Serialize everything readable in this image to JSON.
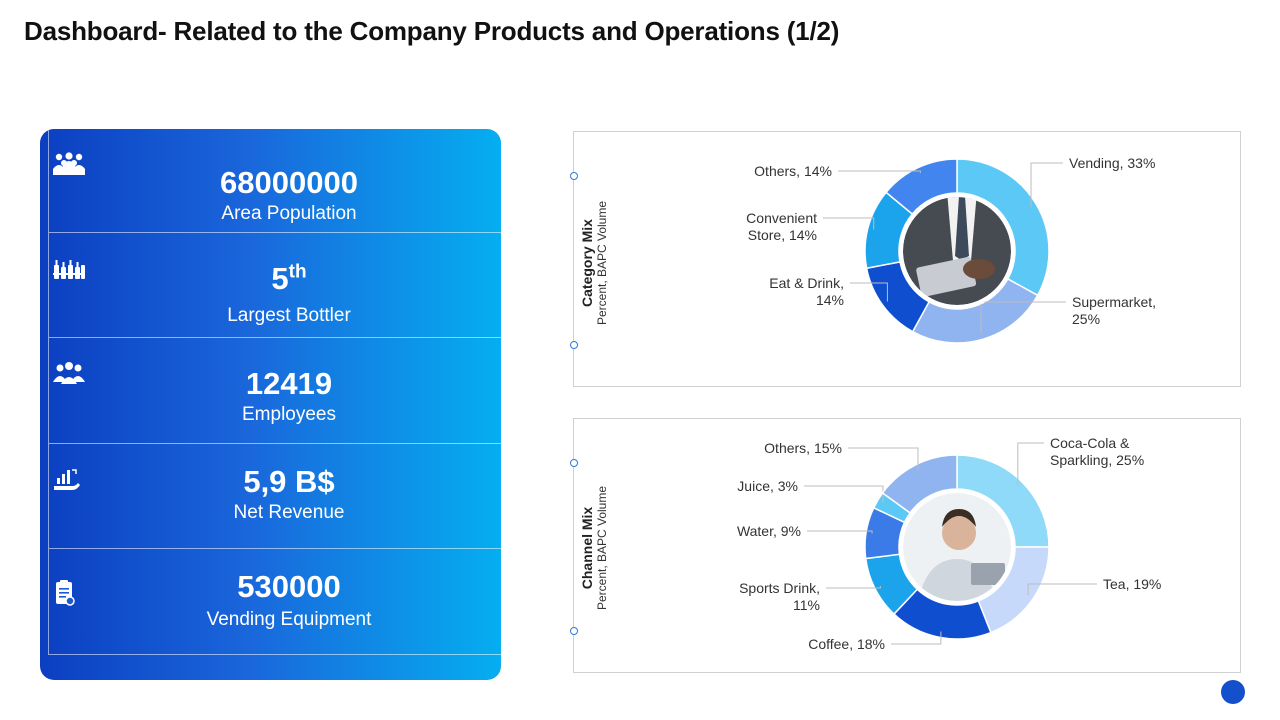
{
  "title": "Dashboard- Related to the Company Products and Operations (1/2)",
  "kpis": [
    {
      "value": "68000000",
      "sup": "",
      "label": "Area Population",
      "icon": "people-group-icon"
    },
    {
      "value": "5",
      "sup": "th",
      "label": "Largest Bottler",
      "icon": "bottles-icon"
    },
    {
      "value": "12419",
      "sup": "",
      "label": "Employees",
      "icon": "team-icon"
    },
    {
      "value": "5,9 B$",
      "sup": "",
      "label": "Net Revenue",
      "icon": "revenue-hand-icon"
    },
    {
      "value": "530000",
      "sup": "",
      "label": "Vending  Equipment",
      "icon": "clipboard-icon"
    }
  ],
  "colors": {
    "panel_start": "#0b3fc1",
    "panel_end": "#05aef0",
    "accent": "#1450cc"
  },
  "chart_data": [
    {
      "type": "pie",
      "variant": "donut",
      "title": "Category Mix",
      "subtitle": "Percent, BAPC Volume",
      "slices": [
        {
          "name": "Vending",
          "value": 33,
          "label": "Vending,  33%",
          "color": "#5cc8f5"
        },
        {
          "name": "Supermarket",
          "value": 25,
          "label": "Supermarket,\n25%",
          "color": "#8fb4f0"
        },
        {
          "name": "Eat & Drink",
          "value": 14,
          "label": "Eat & Drink,\n14%",
          "color": "#0f4fcf"
        },
        {
          "name": "Convenient Store",
          "value": 14,
          "label": "Convenient\nStore, 14%",
          "color": "#1ba4ec"
        },
        {
          "name": "Others",
          "value": 14,
          "label": "Others, 14%",
          "color": "#4285ee"
        }
      ]
    },
    {
      "type": "pie",
      "variant": "donut",
      "title": "Channel Mix",
      "subtitle": "Percent, BAPC Volume",
      "slices": [
        {
          "name": "Coca-Cola & Sparkling",
          "value": 25,
          "label": "Coca-Cola &\nSparkling, 25%",
          "color": "#8fdaf9"
        },
        {
          "name": "Tea",
          "value": 19,
          "label": "Tea, 19%",
          "color": "#c6d9fb"
        },
        {
          "name": "Coffee",
          "value": 18,
          "label": "Coffee, 18%",
          "color": "#0f4fcf"
        },
        {
          "name": "Sports Drink",
          "value": 11,
          "label": "Sports Drink,\n11%",
          "color": "#1ba4ec"
        },
        {
          "name": "Water",
          "value": 9,
          "label": "Water, 9%",
          "color": "#3a7be8"
        },
        {
          "name": "Juice",
          "value": 3,
          "label": "Juice, 3%",
          "color": "#5cc8f5"
        },
        {
          "name": "Others",
          "value": 15,
          "label": "Others, 15%",
          "color": "#8fb4f0"
        }
      ]
    }
  ]
}
